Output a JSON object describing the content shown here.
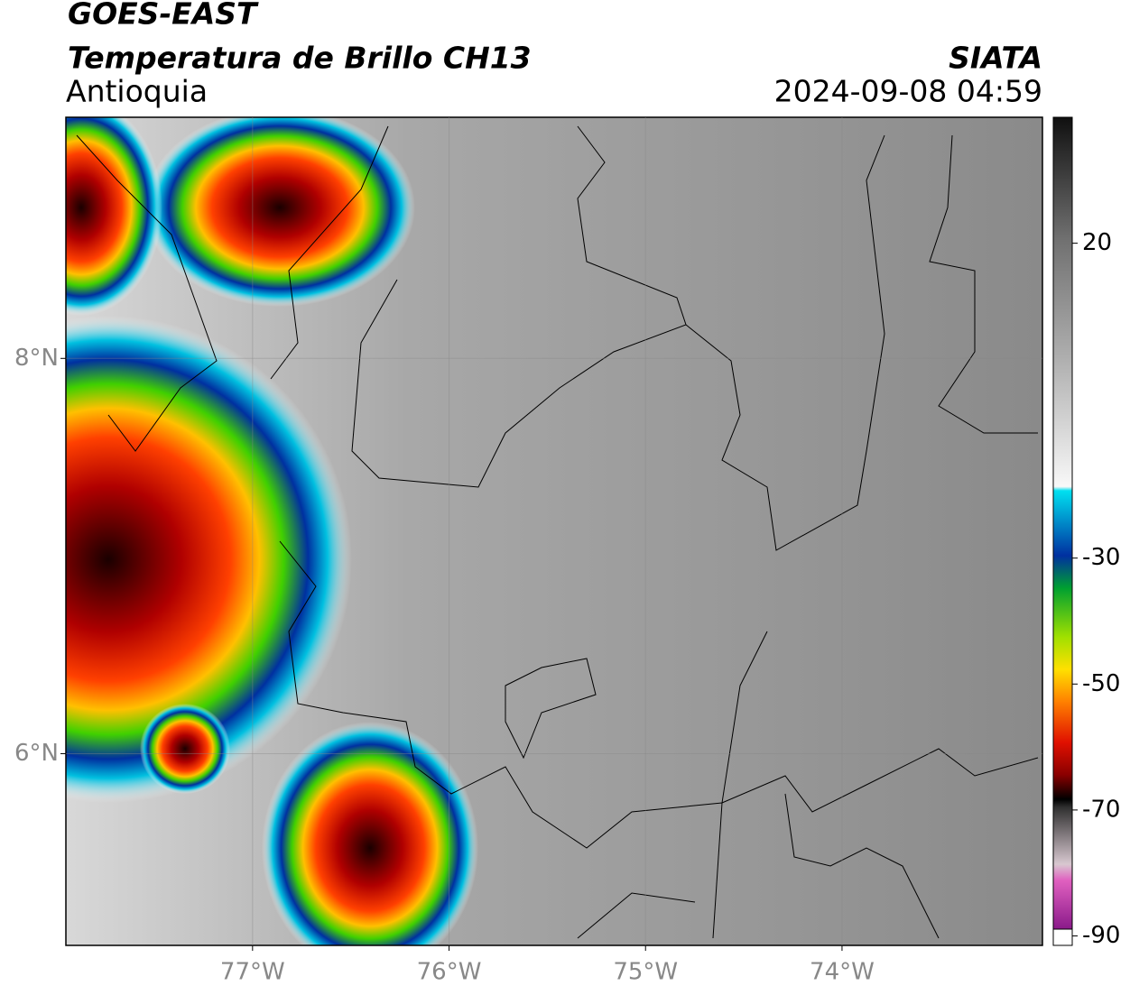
{
  "header": {
    "title": "GOES-EAST",
    "subtitle": "Temperatura de Brillo CH13",
    "region": "Antioquia",
    "source": "SIATA",
    "datetime": "2024-09-08 04:59"
  },
  "map": {
    "xlim": [
      -77.95,
      -72.98
    ],
    "ylim": [
      5.03,
      9.22
    ],
    "xticks": [
      {
        "value": -77,
        "label": "77°W"
      },
      {
        "value": -76,
        "label": "76°W"
      },
      {
        "value": -75,
        "label": "75°W"
      },
      {
        "value": -74,
        "label": "74°W"
      }
    ],
    "yticks": [
      {
        "value": 8,
        "label": "8°N"
      },
      {
        "value": 6,
        "label": "6°N"
      }
    ]
  },
  "colorbar": {
    "lim": [
      -91.5,
      40
    ],
    "ticks": [
      20,
      -30,
      -50,
      -70,
      -90
    ]
  }
}
